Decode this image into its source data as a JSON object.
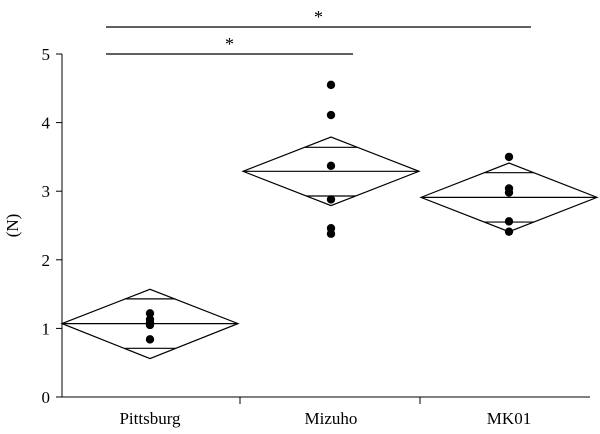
{
  "chart_data": {
    "type": "scatter",
    "subtype": "means-diamonds",
    "ylabel": "(N)",
    "xlabel": "",
    "ylim": [
      0,
      5
    ],
    "yticks": [
      0,
      1,
      2,
      3,
      4,
      5
    ],
    "grid": false,
    "categories": [
      "Pittsburg",
      "Mizuho",
      "MK01"
    ],
    "groups": [
      {
        "category": "Pittsburg",
        "mean": 1.07,
        "ci": [
          0.56,
          1.57
        ],
        "overlap_marks": [
          0.71,
          1.43
        ],
        "points": [
          1.22,
          1.13,
          1.08,
          1.05,
          0.84
        ]
      },
      {
        "category": "Mizuho",
        "mean": 3.29,
        "ci": [
          2.79,
          3.79
        ],
        "overlap_marks": [
          2.93,
          3.64
        ],
        "points": [
          4.55,
          4.11,
          3.37,
          2.88,
          2.46,
          2.38
        ]
      },
      {
        "category": "MK01",
        "mean": 2.91,
        "ci": [
          2.41,
          3.41
        ],
        "overlap_marks": [
          2.55,
          3.27
        ],
        "points": [
          3.5,
          3.04,
          2.98,
          2.56,
          2.41
        ]
      }
    ],
    "significance": [
      {
        "from": "Pittsburg",
        "to": "Mizuho",
        "label": "*"
      },
      {
        "from": "Pittsburg",
        "to": "MK01",
        "label": "*"
      }
    ]
  }
}
